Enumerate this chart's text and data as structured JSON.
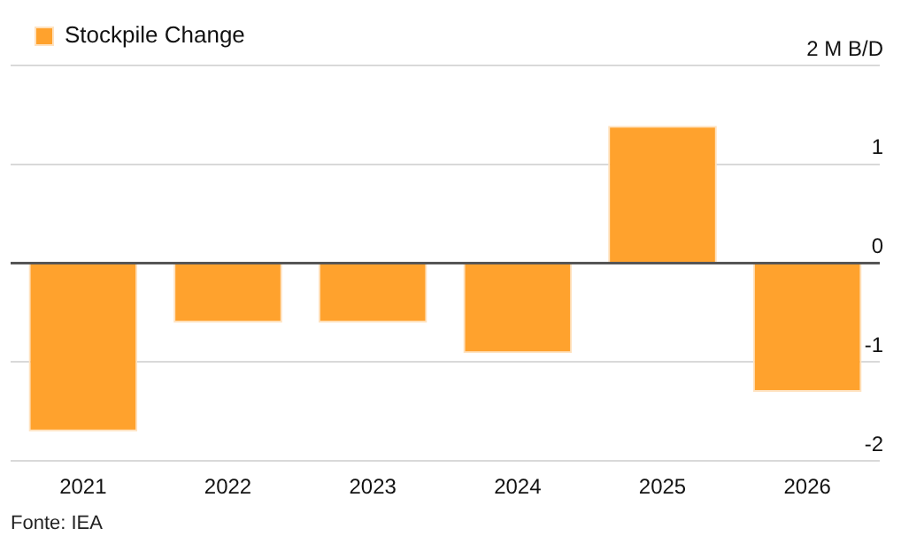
{
  "chart_data": {
    "type": "bar",
    "categories": [
      "2021",
      "2022",
      "2023",
      "2024",
      "2025",
      "2026"
    ],
    "series": [
      {
        "name": "Stockpile Change",
        "color": "#ffa22d",
        "values": [
          -1.7,
          -0.6,
          -0.6,
          -0.91,
          1.39,
          -1.3
        ]
      }
    ],
    "ylim": [
      -2,
      2
    ],
    "yticks": [
      {
        "value": -2,
        "label": "-2"
      },
      {
        "value": -1,
        "label": "-1"
      },
      {
        "value": 0,
        "label": "0"
      },
      {
        "value": 1,
        "label": "1"
      },
      {
        "value": 2,
        "label": "2 M B/D"
      }
    ],
    "grid": "y",
    "legend": "top left",
    "annotations": [
      "Fonte: IEA"
    ]
  }
}
